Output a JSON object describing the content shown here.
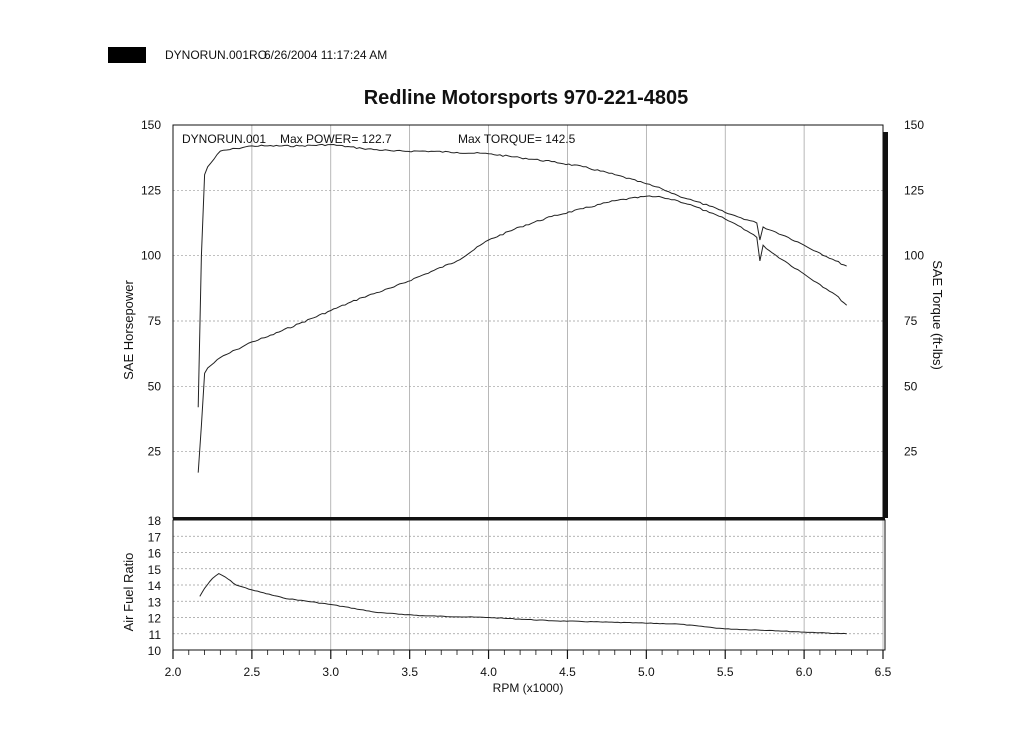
{
  "header": {
    "file_label": "DYNORUN.001RO",
    "datetime": "6/26/2004 11:17:24 AM",
    "title": "Redline Motorsports 970-221-4805"
  },
  "legend": {
    "run_name": "DYNORUN.001",
    "max_power_text": "Max POWER= 122.7",
    "max_torque_text": "Max TORQUE= 142.5"
  },
  "colors": {
    "background": "#ffffff",
    "line": "#222222",
    "grid": "#9a9a9a",
    "header_block": "#000000"
  },
  "chart_data": [
    {
      "type": "line",
      "panel": "main",
      "xlabel": "RPM (x1000)",
      "ylabel_left": "SAE Horsepower",
      "ylabel_right": "SAE Torque (ft-lbs)",
      "xlim": [
        2.0,
        6.5
      ],
      "ylim": [
        0,
        150
      ],
      "x_ticks": [
        2.0,
        2.5,
        3.0,
        3.5,
        4.0,
        4.5,
        5.0,
        5.5,
        6.0,
        6.5
      ],
      "x_tick_labels": [
        "2.0",
        "2.5",
        "3.0",
        "3.5",
        "4.0",
        "4.5",
        "5.0",
        "5.5",
        "6.0",
        "6.5"
      ],
      "y_ticks": [
        25,
        50,
        75,
        100,
        125,
        150
      ],
      "y_tick_labels": [
        "25",
        "50",
        "75",
        "100",
        "125",
        "150"
      ],
      "grid": true,
      "series": [
        {
          "name": "SAE Horsepower",
          "x": [
            2.16,
            2.18,
            2.2,
            2.22,
            2.3,
            2.4,
            2.5,
            2.6,
            2.8,
            3.0,
            3.2,
            3.4,
            3.6,
            3.8,
            4.0,
            4.2,
            4.4,
            4.6,
            4.8,
            5.0,
            5.1,
            5.2,
            5.3,
            5.4,
            5.5,
            5.6,
            5.7,
            5.72,
            5.74,
            5.8,
            5.9,
            6.0,
            6.1,
            6.2,
            6.27
          ],
          "y": [
            17,
            35,
            55,
            57,
            61,
            64,
            67,
            69,
            74,
            79,
            84,
            88,
            93,
            98,
            106,
            111,
            115,
            118,
            121,
            122.7,
            122.3,
            121,
            119,
            116.5,
            114,
            111,
            107,
            98,
            104,
            101,
            97,
            93,
            89,
            85,
            81
          ]
        },
        {
          "name": "SAE Torque (ft-lbs)",
          "x": [
            2.16,
            2.18,
            2.2,
            2.22,
            2.3,
            2.4,
            2.5,
            2.6,
            2.8,
            3.0,
            3.2,
            3.4,
            3.6,
            3.8,
            4.0,
            4.2,
            4.4,
            4.6,
            4.8,
            5.0,
            5.1,
            5.2,
            5.3,
            5.4,
            5.5,
            5.6,
            5.7,
            5.72,
            5.74,
            5.8,
            5.9,
            6.0,
            6.1,
            6.2,
            6.27
          ],
          "y": [
            42,
            100,
            131,
            134,
            140,
            141,
            142,
            142,
            142,
            142.5,
            141,
            140,
            140,
            139.5,
            139,
            137.5,
            136,
            134,
            131,
            127.5,
            125.5,
            123,
            121,
            119,
            116.5,
            114.5,
            112.5,
            106,
            111,
            109.5,
            107,
            104,
            101,
            98,
            96
          ]
        }
      ]
    },
    {
      "type": "line",
      "panel": "afr",
      "xlabel": "RPM (x1000)",
      "ylabel": "Air Fuel Ratio",
      "xlim": [
        2.0,
        6.5
      ],
      "ylim": [
        10,
        18
      ],
      "y_ticks": [
        10,
        11,
        12,
        13,
        14,
        15,
        16,
        17,
        18
      ],
      "y_tick_labels": [
        "10",
        "11",
        "12",
        "13",
        "14",
        "15",
        "16",
        "17",
        "18"
      ],
      "grid": true,
      "series": [
        {
          "name": "Air Fuel Ratio",
          "x": [
            2.17,
            2.2,
            2.25,
            2.29,
            2.33,
            2.4,
            2.5,
            2.7,
            3.0,
            3.3,
            3.6,
            4.0,
            4.4,
            4.8,
            5.2,
            5.5,
            5.8,
            6.0,
            6.27
          ],
          "y": [
            13.3,
            13.8,
            14.4,
            14.7,
            14.5,
            14.0,
            13.7,
            13.2,
            12.8,
            12.3,
            12.1,
            12.0,
            11.8,
            11.7,
            11.6,
            11.3,
            11.2,
            11.1,
            11.0
          ]
        }
      ]
    }
  ]
}
